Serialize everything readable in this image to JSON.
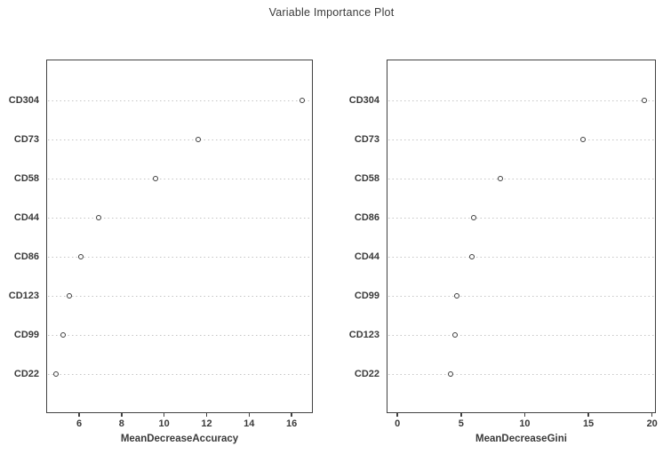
{
  "title": "Variable Importance Plot",
  "colors": {
    "background": "#ffffff",
    "text": "#3a3a3a",
    "panel_border": "#424242",
    "grid_dotted": "#c5c5c5",
    "point_outline": "#3e3e3e"
  },
  "chart_data": [
    {
      "type": "scatter",
      "title": "Variable Importance Plot",
      "xlabel": "MeanDecreaseAccuracy",
      "ylabel": "",
      "categories": [
        "CD304",
        "CD73",
        "CD58",
        "CD44",
        "CD86",
        "CD123",
        "CD99",
        "CD22"
      ],
      "values": [
        16.5,
        11.6,
        9.6,
        6.9,
        6.1,
        5.55,
        5.25,
        4.9
      ],
      "xticks": [
        6,
        8,
        10,
        12,
        14,
        16
      ],
      "xlim": [
        4.45,
        17.0
      ],
      "grid": "horizontal-dotted",
      "legend": "none",
      "point_style": "open-circle"
    },
    {
      "type": "scatter",
      "title": "Variable Importance Plot",
      "xlabel": "MeanDecreaseGini",
      "ylabel": "",
      "categories": [
        "CD304",
        "CD73",
        "CD58",
        "CD86",
        "CD44",
        "CD99",
        "CD123",
        "CD22"
      ],
      "values": [
        19.4,
        14.6,
        8.1,
        6.0,
        5.85,
        4.65,
        4.55,
        4.2
      ],
      "xticks": [
        0,
        5,
        10,
        15,
        20
      ],
      "xlim": [
        -0.85,
        20.3
      ],
      "grid": "horizontal-dotted",
      "legend": "none",
      "point_style": "open-circle"
    }
  ]
}
